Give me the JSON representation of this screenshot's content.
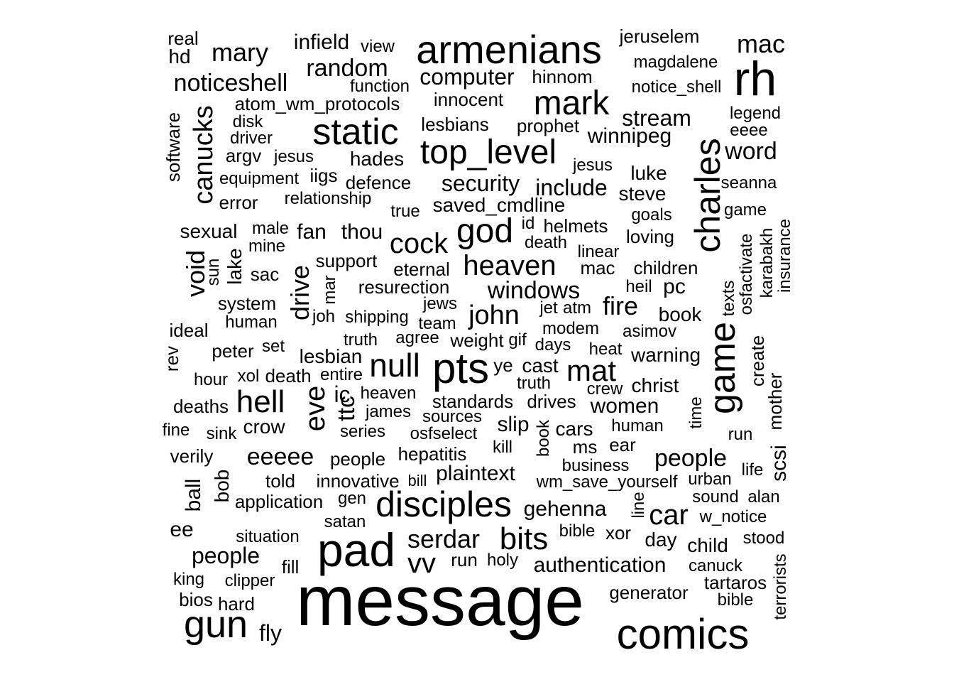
{
  "words": [
    {
      "text": "message",
      "size": 100,
      "rot": 0
    },
    {
      "text": "pad",
      "size": 66,
      "rot": 0
    },
    {
      "text": "comics",
      "size": 60,
      "rot": 0
    },
    {
      "text": "gun",
      "size": 54,
      "rot": 0
    },
    {
      "text": "pts",
      "size": 60,
      "rot": 0
    },
    {
      "text": "disciples",
      "size": 50,
      "rot": 0
    },
    {
      "text": "armenians",
      "size": 56,
      "rot": 0
    },
    {
      "text": "rh",
      "size": 68,
      "rot": 0
    },
    {
      "text": "static",
      "size": 52,
      "rot": 0
    },
    {
      "text": "top_level",
      "size": 48,
      "rot": 0
    },
    {
      "text": "god",
      "size": 48,
      "rot": 0
    },
    {
      "text": "mark",
      "size": 48,
      "rot": 0
    },
    {
      "text": "game",
      "size": 52,
      "rot": 90
    },
    {
      "text": "charles",
      "size": 50,
      "rot": 90
    },
    {
      "text": "null",
      "size": 46,
      "rot": 0
    },
    {
      "text": "hell",
      "size": 44,
      "rot": 0
    },
    {
      "text": "mat",
      "size": 42,
      "rot": 0
    },
    {
      "text": "eve",
      "size": 40,
      "rot": 90
    },
    {
      "text": "bits",
      "size": 44,
      "rot": 0
    },
    {
      "text": "heaven",
      "size": 40,
      "rot": 0
    },
    {
      "text": "cock",
      "size": 40,
      "rot": 0
    },
    {
      "text": "john",
      "size": 38,
      "rot": 0
    },
    {
      "text": "car",
      "size": 40,
      "rot": 0
    },
    {
      "text": "serdar",
      "size": 36,
      "rot": 0
    },
    {
      "text": "vv",
      "size": 40,
      "rot": 0
    },
    {
      "text": "canucks",
      "size": 38,
      "rot": 90
    },
    {
      "text": "drive",
      "size": 36,
      "rot": 90
    },
    {
      "text": "void",
      "size": 36,
      "rot": 90
    },
    {
      "text": "mary",
      "size": 36,
      "rot": 0
    },
    {
      "text": "mac",
      "size": 36,
      "rot": 0
    },
    {
      "text": "random",
      "size": 34,
      "rot": 0
    },
    {
      "text": "noticeshell",
      "size": 34,
      "rot": 0
    },
    {
      "text": "windows",
      "size": 34,
      "rot": 0
    },
    {
      "text": "fire",
      "size": 36,
      "rot": 0
    },
    {
      "text": "people",
      "size": 34,
      "rot": 0
    },
    {
      "text": "people",
      "size": 32,
      "rot": 0
    },
    {
      "text": "computer",
      "size": 32,
      "rot": 0
    },
    {
      "text": "word",
      "size": 34,
      "rot": 0
    },
    {
      "text": "stream",
      "size": 32,
      "rot": 0
    },
    {
      "text": "security",
      "size": 32,
      "rot": 0
    },
    {
      "text": "include",
      "size": 32,
      "rot": 0
    },
    {
      "text": "eeeee",
      "size": 34,
      "rot": 0
    },
    {
      "text": "gehenna",
      "size": 30,
      "rot": 0
    },
    {
      "text": "women",
      "size": 30,
      "rot": 0
    },
    {
      "text": "plaintext",
      "size": 30,
      "rot": 0
    },
    {
      "text": "authentication",
      "size": 30,
      "rot": 0
    },
    {
      "text": "infield",
      "size": 30,
      "rot": 0
    },
    {
      "text": "winnipeg",
      "size": 30,
      "rot": 0
    },
    {
      "text": "ttc",
      "size": 34,
      "rot": 90
    },
    {
      "text": "ic",
      "size": 32,
      "rot": 0
    },
    {
      "text": "slip",
      "size": 30,
      "rot": 0
    },
    {
      "text": "fly",
      "size": 32,
      "rot": 0
    },
    {
      "text": "thou",
      "size": 30,
      "rot": 0
    },
    {
      "text": "fan",
      "size": 30,
      "rot": 0
    },
    {
      "text": "luke",
      "size": 28,
      "rot": 0
    },
    {
      "text": "steve",
      "size": 28,
      "rot": 0
    },
    {
      "text": "hades",
      "size": 28,
      "rot": 0
    },
    {
      "text": "lesbian",
      "size": 28,
      "rot": 0
    },
    {
      "text": "sexual",
      "size": 28,
      "rot": 0
    },
    {
      "text": "scsi",
      "size": 30,
      "rot": 90
    },
    {
      "text": "pc",
      "size": 30,
      "rot": 0
    },
    {
      "text": "crow",
      "size": 28,
      "rot": 0
    },
    {
      "text": "ball",
      "size": 30,
      "rot": 90
    },
    {
      "text": "child",
      "size": 28,
      "rot": 0
    },
    {
      "text": "ee",
      "size": 30,
      "rot": 0
    },
    {
      "text": "cars",
      "size": 28,
      "rot": 0
    },
    {
      "text": "cast",
      "size": 28,
      "rot": 0
    },
    {
      "text": "drives",
      "size": 26,
      "rot": 0
    },
    {
      "text": "day",
      "size": 28,
      "rot": 0
    },
    {
      "text": "christ",
      "size": 28,
      "rot": 0
    },
    {
      "text": "warning",
      "size": 28,
      "rot": 0
    },
    {
      "text": "book",
      "size": 28,
      "rot": 0
    },
    {
      "text": "saved_cmdline",
      "size": 28,
      "rot": 0
    },
    {
      "text": "innocent",
      "size": 26,
      "rot": 0
    },
    {
      "text": "people",
      "size": 26,
      "rot": 0
    },
    {
      "text": "weight",
      "size": 26,
      "rot": 0
    },
    {
      "text": "application",
      "size": 26,
      "rot": 0
    },
    {
      "text": "innovative",
      "size": 26,
      "rot": 0
    },
    {
      "text": "hepatitis",
      "size": 26,
      "rot": 0
    },
    {
      "text": "standards",
      "size": 26,
      "rot": 0
    },
    {
      "text": "support",
      "size": 26,
      "rot": 0
    },
    {
      "text": "eternal",
      "size": 26,
      "rot": 0
    },
    {
      "text": "resurection",
      "size": 26,
      "rot": 0
    },
    {
      "text": "jeruselem",
      "size": 26,
      "rot": 0
    },
    {
      "text": "hinnom",
      "size": 26,
      "rot": 0
    },
    {
      "text": "prophet",
      "size": 26,
      "rot": 0
    },
    {
      "text": "lesbians",
      "size": 26,
      "rot": 0
    },
    {
      "text": "helmets",
      "size": 26,
      "rot": 0
    },
    {
      "text": "loving",
      "size": 26,
      "rot": 0
    },
    {
      "text": "ear",
      "size": 26,
      "rot": 0
    },
    {
      "text": "tartaros",
      "size": 26,
      "rot": 0
    },
    {
      "text": "generator",
      "size": 26,
      "rot": 0
    },
    {
      "text": "told",
      "size": 26,
      "rot": 0
    },
    {
      "text": "hard",
      "size": 26,
      "rot": 0
    },
    {
      "text": "bios",
      "size": 26,
      "rot": 0
    },
    {
      "text": "verily",
      "size": 26,
      "rot": 0
    },
    {
      "text": "deaths",
      "size": 26,
      "rot": 0
    },
    {
      "text": "peter",
      "size": 26,
      "rot": 0
    },
    {
      "text": "sac",
      "size": 26,
      "rot": 0
    },
    {
      "text": "system",
      "size": 26,
      "rot": 0
    },
    {
      "text": "ideal",
      "size": 26,
      "rot": 0
    },
    {
      "text": "atom_wm_protocols",
      "size": 26,
      "rot": 0
    },
    {
      "text": "argv",
      "size": 26,
      "rot": 0
    },
    {
      "text": "iigs",
      "size": 26,
      "rot": 0
    },
    {
      "text": "defence",
      "size": 26,
      "rot": 0
    },
    {
      "text": "error",
      "size": 26,
      "rot": 0
    },
    {
      "text": "equipment",
      "size": 24,
      "rot": 0
    },
    {
      "text": "relationship",
      "size": 24,
      "rot": 0
    },
    {
      "text": "software",
      "size": 26,
      "rot": 90
    },
    {
      "text": "real",
      "size": 26,
      "rot": 0
    },
    {
      "text": "hd",
      "size": 28,
      "rot": 0
    },
    {
      "text": "view",
      "size": 24,
      "rot": 0
    },
    {
      "text": "function",
      "size": 24,
      "rot": 0
    },
    {
      "text": "magdalene",
      "size": 24,
      "rot": 0
    },
    {
      "text": "notice_shell",
      "size": 24,
      "rot": 0
    },
    {
      "text": "legend",
      "size": 24,
      "rot": 0
    },
    {
      "text": "eeee",
      "size": 24,
      "rot": 0
    },
    {
      "text": "seanna",
      "size": 24,
      "rot": 0
    },
    {
      "text": "game",
      "size": 24,
      "rot": 0
    },
    {
      "text": "goals",
      "size": 24,
      "rot": 0
    },
    {
      "text": "linear",
      "size": 24,
      "rot": 0
    },
    {
      "text": "mac",
      "size": 26,
      "rot": 0
    },
    {
      "text": "children",
      "size": 26,
      "rot": 0
    },
    {
      "text": "heil",
      "size": 24,
      "rot": 0
    },
    {
      "text": "asimov",
      "size": 24,
      "rot": 0
    },
    {
      "text": "heat",
      "size": 24,
      "rot": 0
    },
    {
      "text": "crew",
      "size": 24,
      "rot": 0
    },
    {
      "text": "human",
      "size": 24,
      "rot": 0
    },
    {
      "text": "ms",
      "size": 26,
      "rot": 0
    },
    {
      "text": "business",
      "size": 24,
      "rot": 0
    },
    {
      "text": "wm_save_yourself",
      "size": 24,
      "rot": 0
    },
    {
      "text": "urban",
      "size": 24,
      "rot": 0
    },
    {
      "text": "sound",
      "size": 24,
      "rot": 0
    },
    {
      "text": "alan",
      "size": 24,
      "rot": 0
    },
    {
      "text": "w_notice",
      "size": 24,
      "rot": 0
    },
    {
      "text": "stood",
      "size": 24,
      "rot": 0
    },
    {
      "text": "canuck",
      "size": 24,
      "rot": 0
    },
    {
      "text": "bible",
      "size": 24,
      "rot": 0
    },
    {
      "text": "bible",
      "size": 24,
      "rot": 0
    },
    {
      "text": "xor",
      "size": 26,
      "rot": 0
    },
    {
      "text": "holy",
      "size": 24,
      "rot": 0
    },
    {
      "text": "run",
      "size": 26,
      "rot": 0
    },
    {
      "text": "run",
      "size": 24,
      "rot": 0
    },
    {
      "text": "life",
      "size": 24,
      "rot": 0
    },
    {
      "text": "kill",
      "size": 24,
      "rot": 0
    },
    {
      "text": "modem",
      "size": 24,
      "rot": 0
    },
    {
      "text": "days",
      "size": 24,
      "rot": 0
    },
    {
      "text": "jet",
      "size": 24,
      "rot": 0
    },
    {
      "text": "atm",
      "size": 24,
      "rot": 0
    },
    {
      "text": "gif",
      "size": 24,
      "rot": 0
    },
    {
      "text": "agree",
      "size": 24,
      "rot": 0
    },
    {
      "text": "truth",
      "size": 24,
      "rot": 0
    },
    {
      "text": "truth",
      "size": 24,
      "rot": 0
    },
    {
      "text": "jews",
      "size": 24,
      "rot": 0
    },
    {
      "text": "team",
      "size": 24,
      "rot": 0
    },
    {
      "text": "shipping",
      "size": 24,
      "rot": 0
    },
    {
      "text": "joh",
      "size": 24,
      "rot": 0
    },
    {
      "text": "entire",
      "size": 24,
      "rot": 0
    },
    {
      "text": "death",
      "size": 26,
      "rot": 0
    },
    {
      "text": "death",
      "size": 24,
      "rot": 0
    },
    {
      "text": "xol",
      "size": 24,
      "rot": 0
    },
    {
      "text": "set",
      "size": 24,
      "rot": 0
    },
    {
      "text": "hour",
      "size": 24,
      "rot": 0
    },
    {
      "text": "heaven",
      "size": 24,
      "rot": 0
    },
    {
      "text": "james",
      "size": 24,
      "rot": 0
    },
    {
      "text": "sources",
      "size": 24,
      "rot": 0
    },
    {
      "text": "series",
      "size": 24,
      "rot": 0
    },
    {
      "text": "osfselect",
      "size": 24,
      "rot": 0
    },
    {
      "text": "sink",
      "size": 24,
      "rot": 0
    },
    {
      "text": "fine",
      "size": 24,
      "rot": 0
    },
    {
      "text": "bill",
      "size": 22,
      "rot": 0
    },
    {
      "text": "gen",
      "size": 24,
      "rot": 0
    },
    {
      "text": "satan",
      "size": 24,
      "rot": 0
    },
    {
      "text": "situation",
      "size": 24,
      "rot": 0
    },
    {
      "text": "fill",
      "size": 26,
      "rot": 0
    },
    {
      "text": "king",
      "size": 24,
      "rot": 0
    },
    {
      "text": "clipper",
      "size": 24,
      "rot": 0
    },
    {
      "text": "human",
      "size": 24,
      "rot": 0
    },
    {
      "text": "mine",
      "size": 24,
      "rot": 0
    },
    {
      "text": "male",
      "size": 24,
      "rot": 0
    },
    {
      "text": "disk",
      "size": 24,
      "rot": 0
    },
    {
      "text": "driver",
      "size": 24,
      "rot": 0
    },
    {
      "text": "jesus",
      "size": 24,
      "rot": 0
    },
    {
      "text": "jesus",
      "size": 24,
      "rot": 0
    },
    {
      "text": "true",
      "size": 24,
      "rot": 0
    },
    {
      "text": "id",
      "size": 24,
      "rot": 0
    },
    {
      "text": "ye",
      "size": 26,
      "rot": 0
    },
    {
      "text": "bob",
      "size": 28,
      "rot": 90
    },
    {
      "text": "lake",
      "size": 28,
      "rot": 90
    },
    {
      "text": "sun",
      "size": 24,
      "rot": 90
    },
    {
      "text": "mar",
      "size": 24,
      "rot": 90
    },
    {
      "text": "rev",
      "size": 26,
      "rot": 90
    },
    {
      "text": "book",
      "size": 24,
      "rot": 90
    },
    {
      "text": "line",
      "size": 24,
      "rot": 90
    },
    {
      "text": "time",
      "size": 24,
      "rot": 90
    },
    {
      "text": "texts",
      "size": 24,
      "rot": 90
    },
    {
      "text": "create",
      "size": 26,
      "rot": 90
    },
    {
      "text": "mother",
      "size": 26,
      "rot": 90
    },
    {
      "text": "osfactivate",
      "size": 24,
      "rot": 90
    },
    {
      "text": "karabakh",
      "size": 24,
      "rot": 90
    },
    {
      "text": "insurance",
      "size": 24,
      "rot": 90
    },
    {
      "text": "terrorists",
      "size": 24,
      "rot": 90
    }
  ]
}
